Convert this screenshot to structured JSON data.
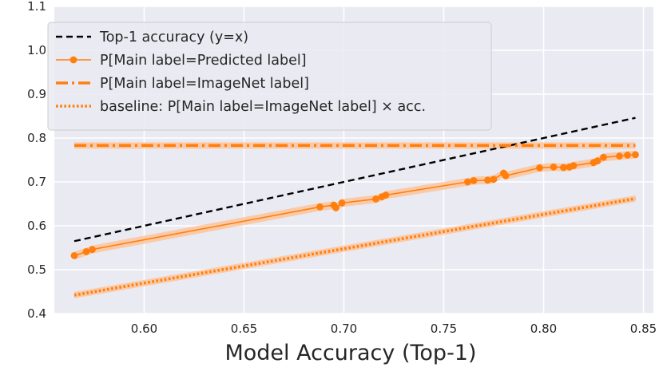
{
  "chart_data": {
    "type": "line",
    "title": "",
    "xlabel": "Model Accuracy (Top-1)",
    "ylabel": "",
    "xlim": [
      0.555,
      0.855
    ],
    "ylim": [
      0.4,
      1.1
    ],
    "xticks": [
      "0.60",
      "0.65",
      "0.70",
      "0.75",
      "0.80",
      "0.85"
    ],
    "yticks": [
      "0.4",
      "0.5",
      "0.6",
      "0.7",
      "0.8",
      "0.9",
      "1.0",
      "1.1"
    ],
    "grid": true,
    "legend_position": "top-left",
    "colors": {
      "background": "#eaeaf2",
      "grid": "#ffffff",
      "identity": "#000000",
      "orange": "#ff7f0e",
      "band": "#ffbf8f"
    },
    "series": [
      {
        "name": "Top-1 accuracy (y=x)",
        "style": "dashed",
        "x": [
          0.565,
          0.846
        ],
        "y": [
          0.565,
          0.846
        ]
      },
      {
        "name": "P[Main label=Predicted label]",
        "style": "solid-markers",
        "x": [
          0.565,
          0.571,
          0.574,
          0.688,
          0.695,
          0.696,
          0.699,
          0.716,
          0.719,
          0.721,
          0.762,
          0.765,
          0.772,
          0.775,
          0.78,
          0.781,
          0.798,
          0.805,
          0.81,
          0.813,
          0.815,
          0.825,
          0.827,
          0.83,
          0.838,
          0.842,
          0.846
        ],
        "y": [
          0.532,
          0.541,
          0.546,
          0.643,
          0.647,
          0.641,
          0.652,
          0.661,
          0.666,
          0.67,
          0.7,
          0.703,
          0.704,
          0.706,
          0.72,
          0.714,
          0.732,
          0.734,
          0.733,
          0.734,
          0.737,
          0.744,
          0.748,
          0.756,
          0.759,
          0.761,
          0.762
        ]
      },
      {
        "name": "P[Main label=ImageNet label]",
        "style": "dashdot",
        "x": [
          0.565,
          0.846
        ],
        "y": [
          0.783,
          0.783
        ]
      },
      {
        "name": "baseline: P[Main label=ImageNet label] × acc.",
        "style": "dotted",
        "x": [
          0.565,
          0.846
        ],
        "y": [
          0.442,
          0.662
        ]
      }
    ]
  }
}
